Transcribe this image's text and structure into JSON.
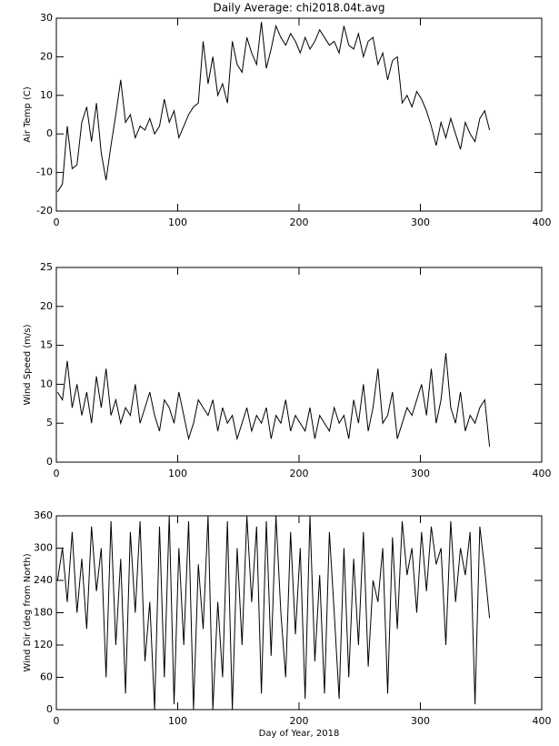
{
  "chart_data": [
    {
      "type": "line",
      "title": "Daily Average: chi2018.04t.avg",
      "y_label": "Air Temp (C)",
      "x": [
        1,
        5,
        9,
        13,
        17,
        21,
        25,
        29,
        33,
        37,
        41,
        45,
        49,
        53,
        57,
        61,
        65,
        69,
        73,
        77,
        81,
        85,
        89,
        93,
        97,
        101,
        105,
        109,
        113,
        117,
        121,
        125,
        129,
        133,
        137,
        141,
        145,
        149,
        153,
        157,
        161,
        165,
        169,
        173,
        177,
        181,
        185,
        189,
        193,
        197,
        201,
        205,
        209,
        213,
        217,
        221,
        225,
        229,
        233,
        237,
        241,
        245,
        249,
        253,
        257,
        261,
        265,
        269,
        273,
        277,
        281,
        285,
        289,
        293,
        297,
        301,
        305,
        309,
        313,
        317,
        321,
        325,
        329,
        333,
        337,
        341,
        345,
        349,
        353,
        357
      ],
      "values": [
        -15,
        -13,
        2,
        -9,
        -8,
        3,
        7,
        -2,
        8,
        -5,
        -12,
        -3,
        5,
        14,
        3,
        5,
        -1,
        2,
        1,
        4,
        0,
        2,
        9,
        3,
        6,
        -1,
        2,
        5,
        7,
        8,
        24,
        13,
        20,
        10,
        13,
        8,
        24,
        18,
        16,
        25,
        21,
        18,
        29,
        17,
        22,
        28,
        25,
        23,
        26,
        24,
        21,
        25,
        22,
        24,
        27,
        25,
        23,
        24,
        21,
        28,
        23,
        22,
        26,
        20,
        24,
        25,
        18,
        21,
        14,
        19,
        20,
        8,
        10,
        7,
        11,
        9,
        6,
        2,
        -3,
        3,
        -1,
        4,
        0,
        -4,
        3,
        0,
        -2,
        4,
        6,
        1
      ],
      "color": "#000000",
      "xlim": [
        0,
        400
      ],
      "xticks": [
        0,
        100,
        200,
        300,
        400
      ],
      "ylim": [
        -20,
        30
      ],
      "yticks": [
        -20,
        -10,
        0,
        10,
        20,
        30
      ]
    },
    {
      "type": "line",
      "y_label": "Wind Speed (m/s)",
      "x": [
        1,
        5,
        9,
        13,
        17,
        21,
        25,
        29,
        33,
        37,
        41,
        45,
        49,
        53,
        57,
        61,
        65,
        69,
        73,
        77,
        81,
        85,
        89,
        93,
        97,
        101,
        105,
        109,
        113,
        117,
        121,
        125,
        129,
        133,
        137,
        141,
        145,
        149,
        153,
        157,
        161,
        165,
        169,
        173,
        177,
        181,
        185,
        189,
        193,
        197,
        201,
        205,
        209,
        213,
        217,
        221,
        225,
        229,
        233,
        237,
        241,
        245,
        249,
        253,
        257,
        261,
        265,
        269,
        273,
        277,
        281,
        285,
        289,
        293,
        297,
        301,
        305,
        309,
        313,
        317,
        321,
        325,
        329,
        333,
        337,
        341,
        345,
        349,
        353,
        357
      ],
      "values": [
        9,
        8,
        13,
        7,
        10,
        6,
        9,
        5,
        11,
        7,
        12,
        6,
        8,
        5,
        7,
        6,
        10,
        5,
        7,
        9,
        6,
        4,
        8,
        7,
        5,
        9,
        6,
        3,
        5,
        8,
        7,
        6,
        8,
        4,
        7,
        5,
        6,
        3,
        5,
        7,
        4,
        6,
        5,
        7,
        3,
        6,
        5,
        8,
        4,
        6,
        5,
        4,
        7,
        3,
        6,
        5,
        4,
        7,
        5,
        6,
        3,
        8,
        5,
        10,
        4,
        7,
        12,
        5,
        6,
        9,
        3,
        5,
        7,
        6,
        8,
        10,
        6,
        12,
        5,
        8,
        14,
        7,
        5,
        9,
        4,
        6,
        5,
        7,
        8,
        2
      ],
      "color": "#000000",
      "xlim": [
        0,
        400
      ],
      "xticks": [
        0,
        100,
        200,
        300,
        400
      ],
      "ylim": [
        0,
        25
      ],
      "yticks": [
        0,
        5,
        10,
        15,
        20,
        25
      ]
    },
    {
      "type": "line",
      "y_label": "Wind Dir (deg from North)",
      "x_label": "Day of Year, 2018",
      "x": [
        1,
        5,
        9,
        13,
        17,
        21,
        25,
        29,
        33,
        37,
        41,
        45,
        49,
        53,
        57,
        61,
        65,
        69,
        73,
        77,
        81,
        85,
        89,
        93,
        97,
        101,
        105,
        109,
        113,
        117,
        121,
        125,
        129,
        133,
        137,
        141,
        145,
        149,
        153,
        157,
        161,
        165,
        169,
        173,
        177,
        181,
        185,
        189,
        193,
        197,
        201,
        205,
        209,
        213,
        217,
        221,
        225,
        229,
        233,
        237,
        241,
        245,
        249,
        253,
        257,
        261,
        265,
        269,
        273,
        277,
        281,
        285,
        289,
        293,
        297,
        301,
        305,
        309,
        313,
        317,
        321,
        325,
        329,
        333,
        337,
        341,
        345,
        349,
        353,
        357
      ],
      "values": [
        240,
        300,
        200,
        330,
        180,
        280,
        150,
        340,
        220,
        300,
        60,
        350,
        120,
        280,
        30,
        330,
        180,
        350,
        90,
        200,
        0,
        340,
        60,
        360,
        10,
        300,
        120,
        350,
        0,
        270,
        150,
        360,
        0,
        200,
        60,
        350,
        0,
        300,
        120,
        360,
        200,
        340,
        30,
        350,
        100,
        360,
        180,
        60,
        330,
        140,
        300,
        20,
        360,
        90,
        250,
        30,
        330,
        180,
        20,
        300,
        60,
        280,
        120,
        330,
        80,
        240,
        200,
        300,
        30,
        320,
        150,
        350,
        250,
        300,
        180,
        330,
        220,
        340,
        270,
        300,
        120,
        350,
        200,
        300,
        250,
        330,
        10,
        340,
        260,
        170
      ],
      "color": "#000000",
      "xlim": [
        0,
        400
      ],
      "xticks": [
        0,
        100,
        200,
        300,
        400
      ],
      "ylim": [
        0,
        360
      ],
      "yticks": [
        0,
        60,
        120,
        180,
        240,
        300,
        360
      ]
    }
  ]
}
